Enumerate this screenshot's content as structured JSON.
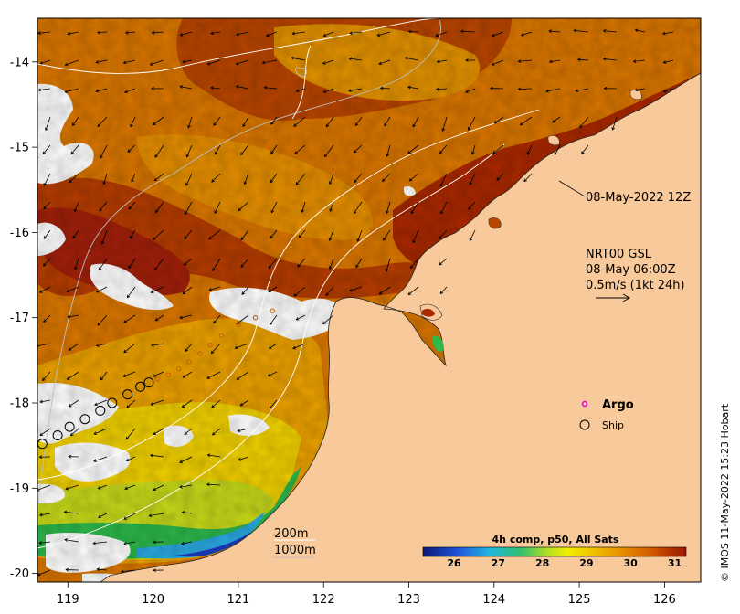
{
  "map": {
    "timestamp_label": "08-May-2022 12Z",
    "current_info": [
      "NRT00 GSL",
      "08-May 06:00Z",
      "0.5m/s (1kt 24h)"
    ],
    "legend": {
      "argo": "Argo",
      "ship": "Ship"
    },
    "contour_labels": [
      "200m",
      "1000m"
    ],
    "colorbar": {
      "title": "4h comp, p50, All Sats",
      "ticks": [
        "26",
        "27",
        "28",
        "29",
        "30",
        "31"
      ]
    },
    "credit": "© IMOS 11-May-2022 15:23 Hobart",
    "lat_ticks": [
      "-14",
      "-15",
      "-16",
      "-17",
      "-18",
      "-19",
      "-20"
    ],
    "lon_ticks": [
      "119",
      "120",
      "121",
      "122",
      "123",
      "124",
      "125",
      "126"
    ],
    "ship_track": [
      {
        "lon": 118.7,
        "lat": -18.48
      },
      {
        "lon": 118.88,
        "lat": -18.38
      },
      {
        "lon": 119.02,
        "lat": -18.28
      },
      {
        "lon": 119.2,
        "lat": -18.19
      },
      {
        "lon": 119.38,
        "lat": -18.09
      },
      {
        "lon": 119.52,
        "lat": -18.0
      },
      {
        "lon": 119.7,
        "lat": -17.9
      },
      {
        "lon": 119.85,
        "lat": -17.81
      },
      {
        "lon": 119.95,
        "lat": -17.76
      }
    ],
    "argo_track": [
      {
        "lon": 120.05,
        "lat": -17.72
      },
      {
        "lon": 120.18,
        "lat": -17.67
      },
      {
        "lon": 120.3,
        "lat": -17.6
      },
      {
        "lon": 120.42,
        "lat": -17.52
      },
      {
        "lon": 120.55,
        "lat": -17.42
      },
      {
        "lon": 120.67,
        "lat": -17.32
      },
      {
        "lon": 120.8,
        "lat": -17.21
      },
      {
        "lon": 121.0,
        "lat": -17.08
      },
      {
        "lon": 121.2,
        "lat": -17.0
      },
      {
        "lon": 121.4,
        "lat": -16.92
      }
    ],
    "colors": {
      "land": "#f8c99a",
      "warm": "#d27000",
      "hot": "#a81e00",
      "mid": "#e99a00",
      "cool": "#f0d000",
      "cooler": "#c2da1a",
      "green": "#28b64a",
      "cyan": "#2aa7df",
      "blue": "#1c3cc0",
      "cloud": "#ffffff",
      "argo": "#e000e0"
    }
  }
}
